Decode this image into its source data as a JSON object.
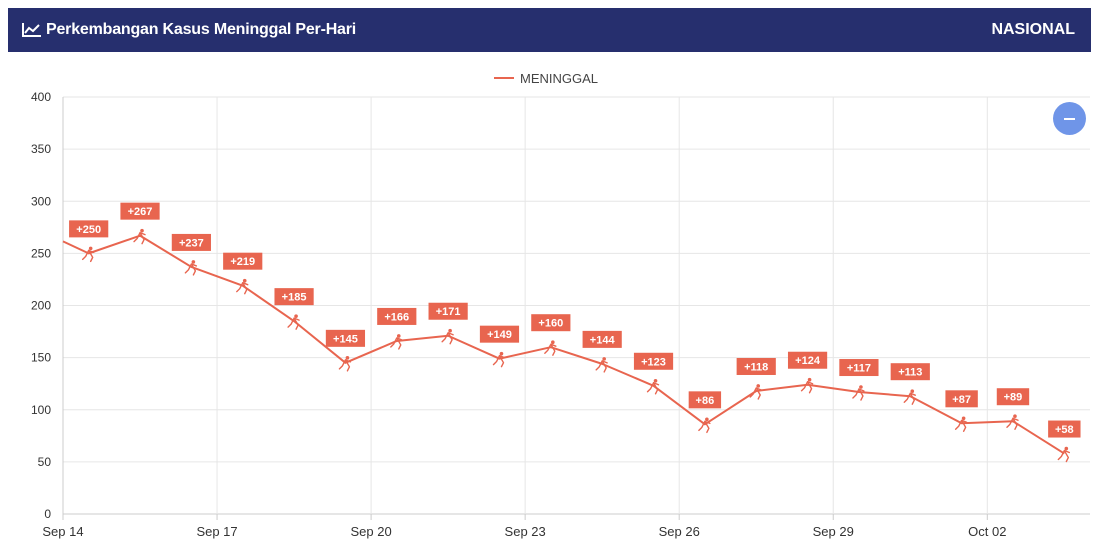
{
  "header": {
    "title": "Perkembangan Kasus Meninggal Per-Hari",
    "region": "NASIONAL",
    "title_icon": "line-chart-icon"
  },
  "zoom_button": {
    "icon": "minus-icon"
  },
  "colors": {
    "header_bg": "#262f6e",
    "series": "#e8654f",
    "zoom_button": "#6f95e8"
  },
  "chart_data": {
    "type": "line",
    "legend": {
      "position": "top-center",
      "entries": [
        "MENINGGAL"
      ]
    },
    "grid": true,
    "ylim": [
      0,
      400
    ],
    "yticks": [
      0,
      50,
      100,
      150,
      200,
      250,
      300,
      350,
      400
    ],
    "xlim": [
      "2021-09-14",
      "2021-10-04"
    ],
    "xticks": [
      {
        "date": "2021-09-14",
        "label": "Sep 14"
      },
      {
        "date": "2021-09-17",
        "label": "Sep 17"
      },
      {
        "date": "2021-09-20",
        "label": "Sep 20"
      },
      {
        "date": "2021-09-23",
        "label": "Sep 23"
      },
      {
        "date": "2021-09-26",
        "label": "Sep 26"
      },
      {
        "date": "2021-09-29",
        "label": "Sep 29"
      },
      {
        "date": "2021-10-02",
        "label": "Oct 02"
      }
    ],
    "series": [
      {
        "name": "MENINGGAL",
        "points": [
          {
            "x": "2021-09-14T12:00",
            "y": 250,
            "label": "+250"
          },
          {
            "x": "2021-09-15T12:00",
            "y": 267,
            "label": "+267"
          },
          {
            "x": "2021-09-16T12:00",
            "y": 237,
            "label": "+237"
          },
          {
            "x": "2021-09-17T12:00",
            "y": 219,
            "label": "+219"
          },
          {
            "x": "2021-09-18T12:00",
            "y": 185,
            "label": "+185"
          },
          {
            "x": "2021-09-19T12:00",
            "y": 145,
            "label": "+145"
          },
          {
            "x": "2021-09-20T12:00",
            "y": 166,
            "label": "+166"
          },
          {
            "x": "2021-09-21T12:00",
            "y": 171,
            "label": "+171"
          },
          {
            "x": "2021-09-22T12:00",
            "y": 149,
            "label": "+149"
          },
          {
            "x": "2021-09-23T12:00",
            "y": 160,
            "label": "+160"
          },
          {
            "x": "2021-09-24T12:00",
            "y": 144,
            "label": "+144"
          },
          {
            "x": "2021-09-25T12:00",
            "y": 123,
            "label": "+123"
          },
          {
            "x": "2021-09-26T12:00",
            "y": 86,
            "label": "+86"
          },
          {
            "x": "2021-09-27T12:00",
            "y": 118,
            "label": "+118"
          },
          {
            "x": "2021-09-28T12:00",
            "y": 124,
            "label": "+124"
          },
          {
            "x": "2021-09-29T12:00",
            "y": 117,
            "label": "+117"
          },
          {
            "x": "2021-09-30T12:00",
            "y": 113,
            "label": "+113"
          },
          {
            "x": "2021-10-01T12:00",
            "y": 87,
            "label": "+87"
          },
          {
            "x": "2021-10-02T12:00",
            "y": 89,
            "label": "+89"
          },
          {
            "x": "2021-10-03T12:00",
            "y": 58,
            "label": "+58"
          }
        ]
      }
    ]
  }
}
